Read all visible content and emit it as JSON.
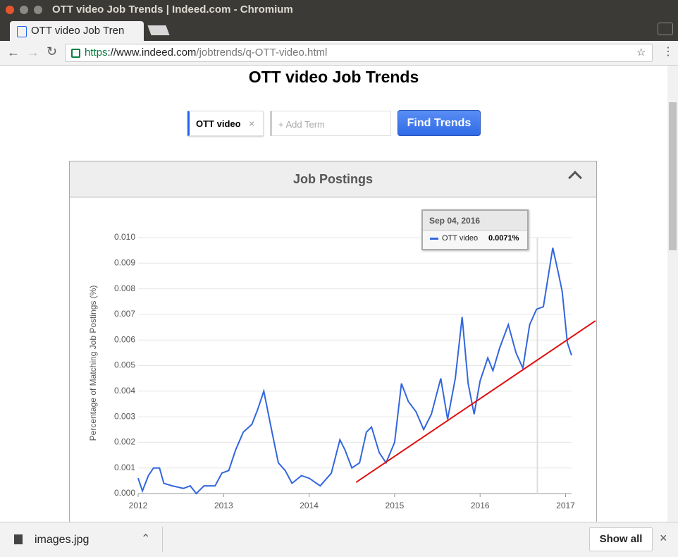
{
  "browser": {
    "window_title": "OTT video Job Trends | Indeed.com - Chromium",
    "tab_title": "OTT video Job Tren",
    "url_scheme": "https",
    "url_host": "://www.indeed.com",
    "url_path": "/jobtrends/q-OTT-video.html"
  },
  "page": {
    "title": "OTT video Job Trends",
    "search_term": "OTT video",
    "add_term": "+ Add Term",
    "button": "Find Trends",
    "panel_title": "Job Postings"
  },
  "download_bar": {
    "file": "images.jpg",
    "show_all": "Show all"
  },
  "chart_data": {
    "type": "line",
    "y_axis_label": "Percentage of Matching Job Postings (%)",
    "x": [
      2012.0,
      2012.05,
      2012.12,
      2012.18,
      2012.25,
      2012.3,
      2012.4,
      2012.53,
      2012.61,
      2012.68,
      2012.77,
      2012.9,
      2012.98,
      2013.06,
      2013.14,
      2013.23,
      2013.33,
      2013.4,
      2013.47,
      2013.56,
      2013.64,
      2013.72,
      2013.8,
      2013.91,
      2014.0,
      2014.13,
      2014.26,
      2014.36,
      2014.42,
      2014.5,
      2014.59,
      2014.67,
      2014.73,
      2014.82,
      2014.9,
      2015.0,
      2015.08,
      2015.16,
      2015.25,
      2015.34,
      2015.43,
      2015.54,
      2015.62,
      2015.71,
      2015.79,
      2015.86,
      2015.93,
      2016.0,
      2016.09,
      2016.15,
      2016.23,
      2016.33,
      2016.42,
      2016.5,
      2016.58,
      2016.66,
      2016.74,
      2016.85,
      2016.91,
      2016.96,
      2017.02,
      2017.07
    ],
    "series": [
      {
        "name": "OTT video",
        "color": "#3366dd",
        "values": [
          0.0006,
          0.0001,
          0.0007,
          0.001,
          0.001,
          0.0004,
          0.0003,
          0.0002,
          0.0003,
          0.0,
          0.0003,
          0.0003,
          0.0008,
          0.0009,
          0.0017,
          0.0024,
          0.0027,
          0.0033,
          0.004,
          0.0025,
          0.0012,
          0.0009,
          0.0004,
          0.0007,
          0.0006,
          0.0003,
          0.0008,
          0.0021,
          0.0017,
          0.001,
          0.0012,
          0.0024,
          0.0026,
          0.0016,
          0.0012,
          0.002,
          0.0043,
          0.0036,
          0.0032,
          0.0025,
          0.0031,
          0.0045,
          0.0029,
          0.0045,
          0.0069,
          0.0043,
          0.0031,
          0.0044,
          0.0053,
          0.0048,
          0.0057,
          0.0066,
          0.0055,
          0.0049,
          0.0066,
          0.0072,
          0.0073,
          0.0096,
          0.0087,
          0.0079,
          0.0059,
          0.0054
        ]
      }
    ],
    "trend_line": {
      "color": "#e01010",
      "x": [
        2014.55,
        2017.35
      ],
      "y": [
        0.00044,
        0.00675
      ]
    },
    "tooltip": {
      "x": 2016.67,
      "date": "Sep 04, 2016",
      "values": [
        0.0071
      ],
      "value_labels": [
        "0.0071%"
      ]
    },
    "xlim": [
      2012,
      2017.07
    ],
    "xticks": [
      2012,
      2013,
      2014,
      2015,
      2016,
      2017
    ],
    "ylim": [
      0,
      0.01
    ],
    "yticks": [
      {
        "value": 0,
        "label": "0.000"
      },
      {
        "value": 0.001,
        "label": "0.001"
      },
      {
        "value": 0.002,
        "label": "0.002"
      },
      {
        "value": 0.003,
        "label": "0.003"
      },
      {
        "value": 0.004,
        "label": "0.004"
      },
      {
        "value": 0.005,
        "label": "0.005"
      },
      {
        "value": 0.006,
        "label": "0.006"
      },
      {
        "value": 0.007,
        "label": "0.007"
      },
      {
        "value": 0.008,
        "label": "0.008"
      },
      {
        "value": 0.009,
        "label": "0.009"
      },
      {
        "value": 0.01,
        "label": "0.010"
      }
    ],
    "grid": true
  }
}
